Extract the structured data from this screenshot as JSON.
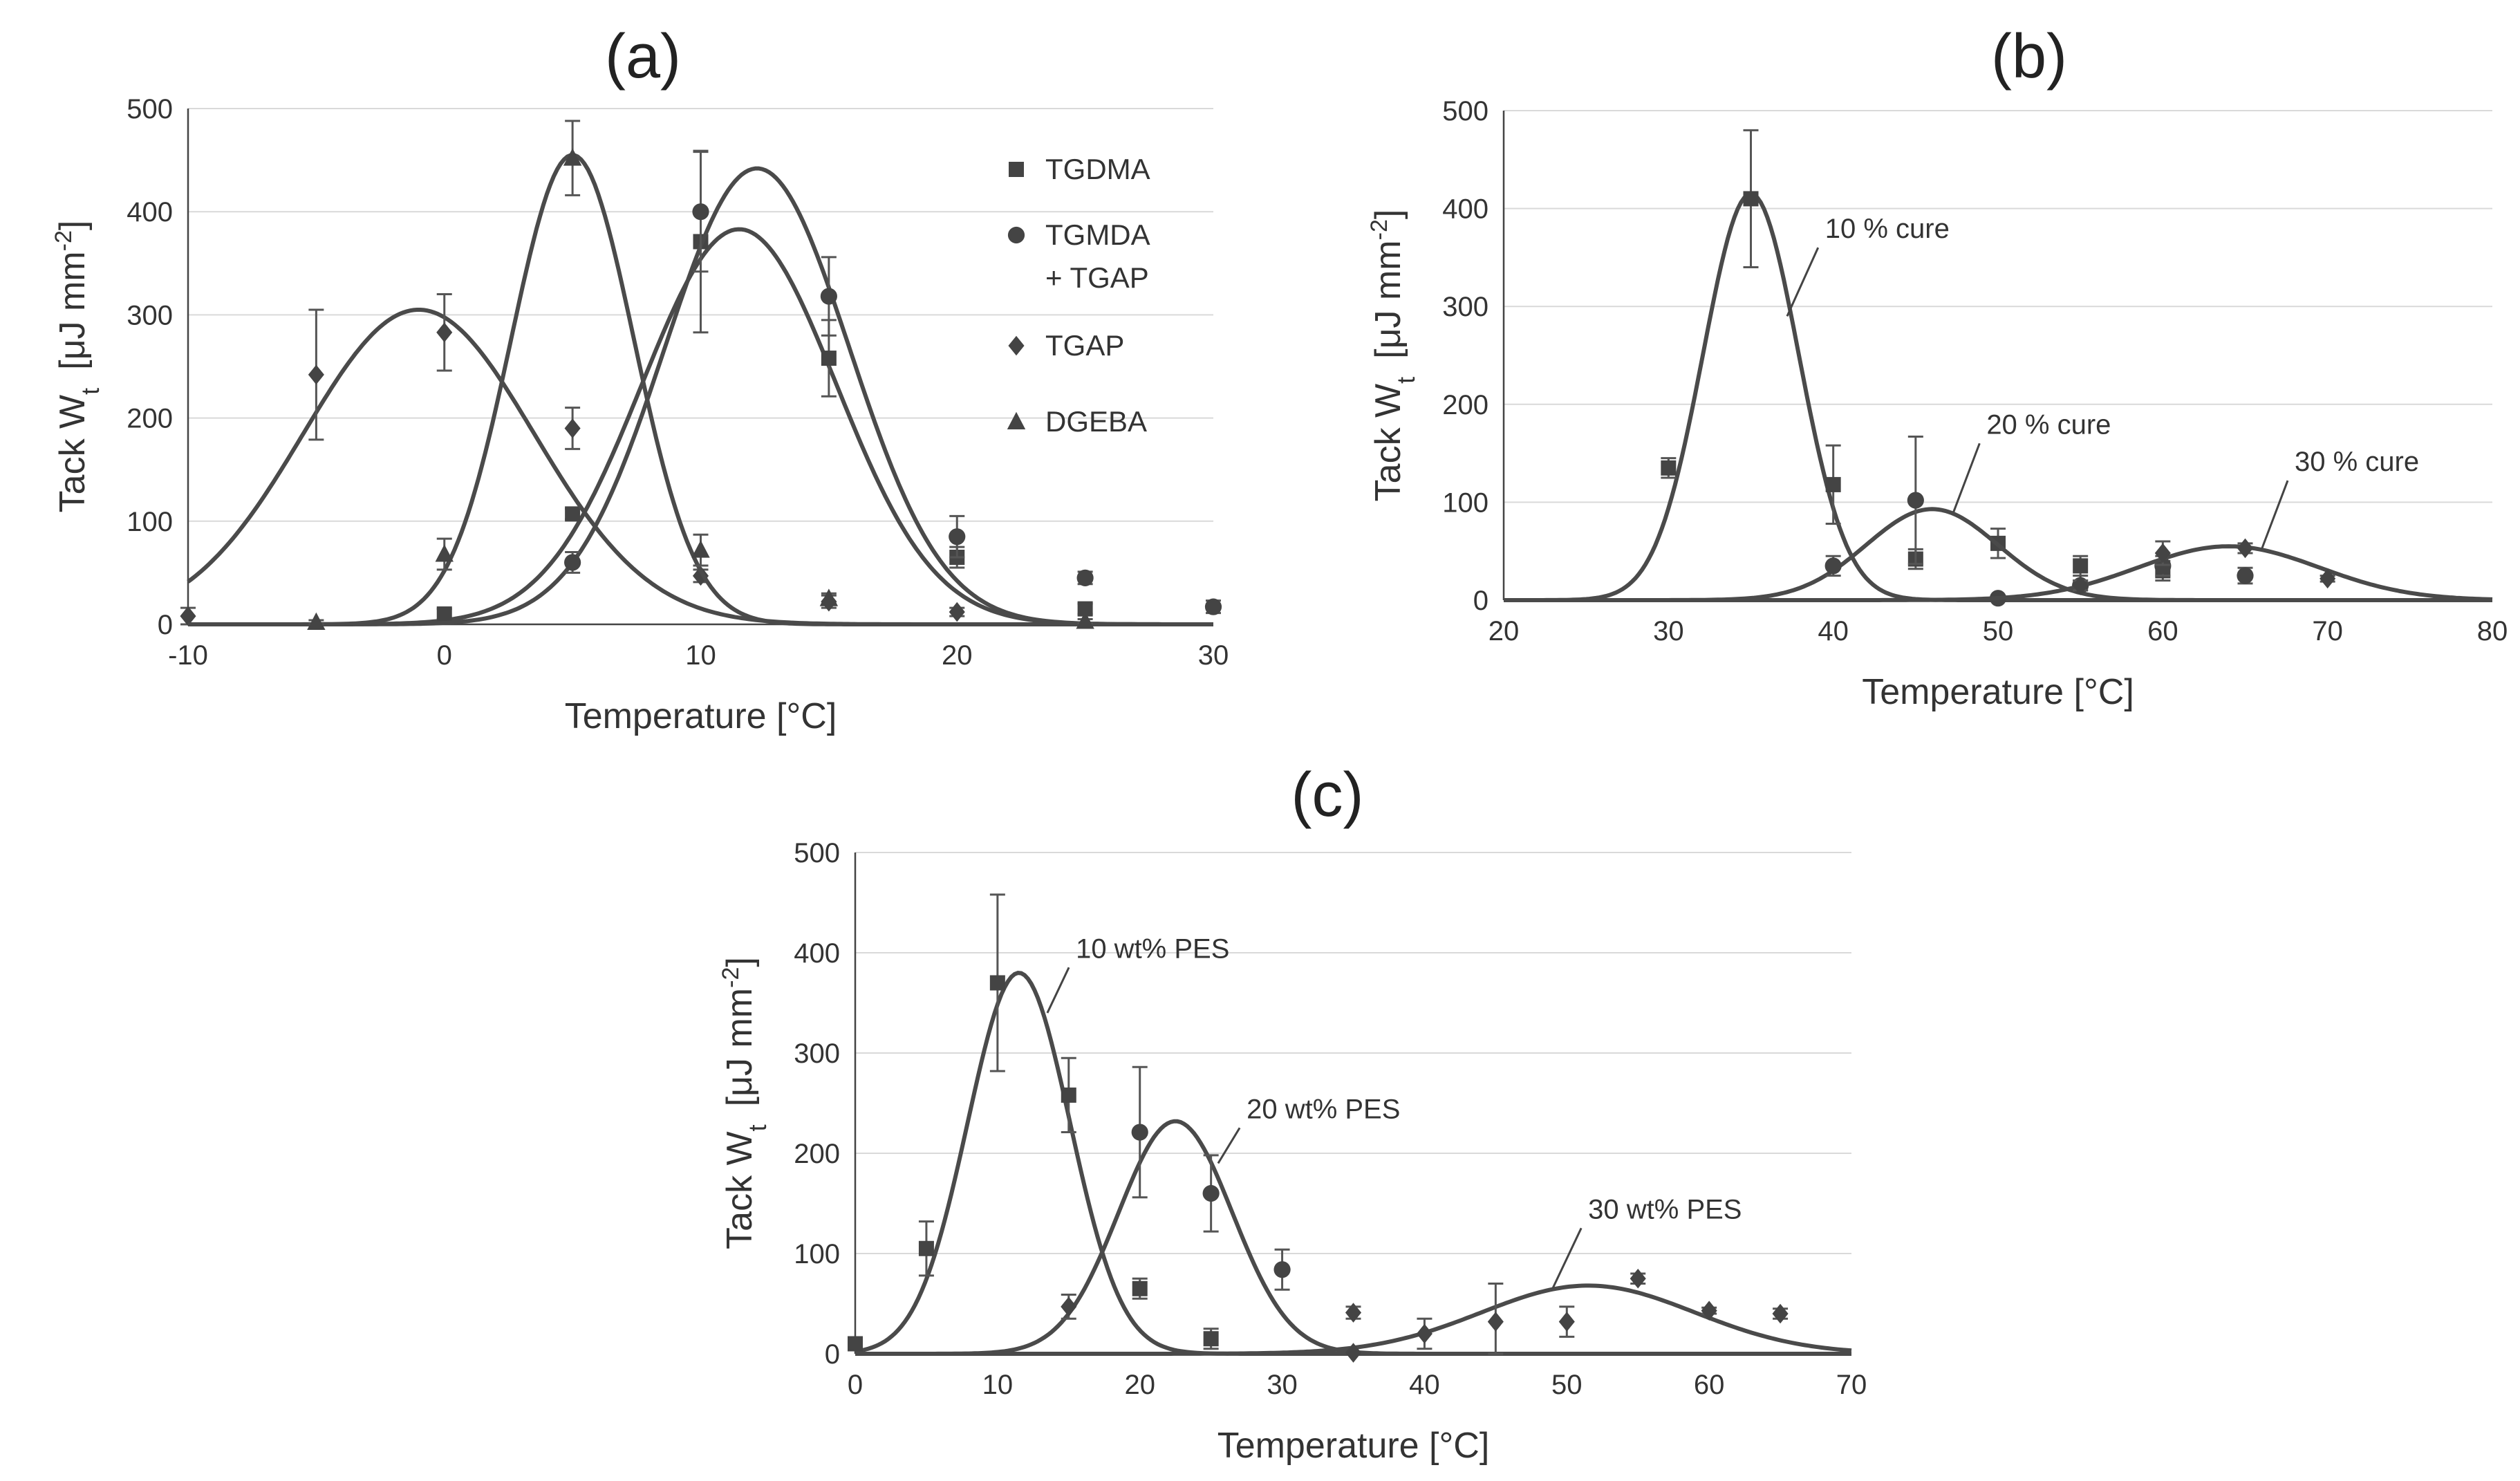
{
  "chart_data": [
    {
      "type": "scatter",
      "title": "(a)",
      "xlabel": "Temperature   [°C]",
      "ylabel": "Tack W",
      "ylabel_sub": "t",
      "ylabel_unit": "[μJ mm",
      "ylabel_sup": "-2",
      "ylabel_close": "]",
      "xlim": [
        -10,
        30
      ],
      "ylim": [
        0,
        500
      ],
      "xticks": [
        -10,
        0,
        10,
        20,
        30
      ],
      "yticks": [
        0,
        100,
        200,
        300,
        400,
        500
      ],
      "grid": "horizontal",
      "legend_position": "top-right",
      "series": [
        {
          "name": "TGDMA",
          "marker": "square",
          "points": [
            {
              "x": 0,
              "y": 10,
              "err": 5
            },
            {
              "x": 5,
              "y": 107,
              "err": 5
            },
            {
              "x": 10,
              "y": 371,
              "err": 88
            },
            {
              "x": 15,
              "y": 258,
              "err": 37
            },
            {
              "x": 20,
              "y": 65,
              "err": 10
            },
            {
              "x": 25,
              "y": 15,
              "err": 5
            }
          ],
          "fit": {
            "A": 383,
            "mu": 11.5,
            "sigma": 3.8
          }
        },
        {
          "name": "TGMDA\n+ TGAP",
          "marker": "circle",
          "points": [
            {
              "x": 5,
              "y": 60,
              "err": 10
            },
            {
              "x": 10,
              "y": 400,
              "err": 58
            },
            {
              "x": 15,
              "y": 318,
              "err": 38
            },
            {
              "x": 20,
              "y": 85,
              "err": 20
            },
            {
              "x": 25,
              "y": 45,
              "err": 6
            },
            {
              "x": 30,
              "y": 17,
              "err": 6
            }
          ],
          "fit": {
            "A": 442,
            "mu": 12.2,
            "sigma": 3.6
          }
        },
        {
          "name": "TGAP",
          "marker": "diamond",
          "points": [
            {
              "x": -10,
              "y": 8,
              "err": 8
            },
            {
              "x": -5,
              "y": 242,
              "err": 63
            },
            {
              "x": 0,
              "y": 283,
              "err": 37
            },
            {
              "x": 5,
              "y": 190,
              "err": 20
            },
            {
              "x": 10,
              "y": 47,
              "err": 6
            },
            {
              "x": 15,
              "y": 22,
              "err": 6
            },
            {
              "x": 20,
              "y": 12,
              "err": 4
            }
          ],
          "fit": {
            "A": 305,
            "mu": -1.0,
            "sigma": 4.5
          }
        },
        {
          "name": "DGEBA",
          "marker": "triangle",
          "points": [
            {
              "x": -5,
              "y": 2,
              "err": 2
            },
            {
              "x": 0,
              "y": 68,
              "err": 15
            },
            {
              "x": 5,
              "y": 452,
              "err": 36
            },
            {
              "x": 10,
              "y": 72,
              "err": 15
            },
            {
              "x": 15,
              "y": 25,
              "err": 5
            },
            {
              "x": 25,
              "y": 3,
              "err": 2
            }
          ],
          "fit": {
            "A": 455,
            "mu": 5.0,
            "sigma": 2.4
          }
        }
      ]
    },
    {
      "type": "scatter",
      "title": "(b)",
      "xlabel": "Temperature   [°C]",
      "ylabel": "Tack W",
      "ylabel_sub": "t",
      "ylabel_unit": "[μJ mm",
      "ylabel_sup": "-2",
      "ylabel_close": "]",
      "xlim": [
        20,
        80
      ],
      "ylim": [
        0,
        500
      ],
      "xticks": [
        20,
        30,
        40,
        50,
        60,
        70,
        80
      ],
      "yticks": [
        0,
        100,
        200,
        300,
        400,
        500
      ],
      "grid": "horizontal",
      "series": [
        {
          "name": "10 % cure",
          "marker": "square",
          "points": [
            {
              "x": 30,
              "y": 135,
              "err": 10
            },
            {
              "x": 35,
              "y": 410,
              "err": 70
            },
            {
              "x": 40,
              "y": 118,
              "err": 40
            },
            {
              "x": 45,
              "y": 42,
              "err": 10
            },
            {
              "x": 50,
              "y": 58,
              "err": 15
            },
            {
              "x": 55,
              "y": 35,
              "err": 10
            },
            {
              "x": 60,
              "y": 30,
              "err": 10
            }
          ],
          "fit": {
            "A": 415,
            "mu": 35.0,
            "sigma": 2.9
          },
          "annotation": {
            "tx": 39.5,
            "ty": 370,
            "px": 37.2,
            "py": 290
          }
        },
        {
          "name": "20 % cure",
          "marker": "circle",
          "points": [
            {
              "x": 40,
              "y": 35,
              "err": 10
            },
            {
              "x": 45,
              "y": 102,
              "err": 65
            },
            {
              "x": 50,
              "y": 2,
              "err": 2
            },
            {
              "x": 55,
              "y": 15,
              "err": 5
            },
            {
              "x": 60,
              "y": 35,
              "err": 10
            },
            {
              "x": 65,
              "y": 25,
              "err": 8
            }
          ],
          "fit": {
            "A": 93,
            "mu": 46.0,
            "sigma": 4.0
          },
          "annotation": {
            "tx": 49.3,
            "ty": 170,
            "px": 47.3,
            "py": 90
          }
        },
        {
          "name": "30 % cure",
          "marker": "diamond",
          "points": [
            {
              "x": 55,
              "y": 15,
              "err": 5
            },
            {
              "x": 60,
              "y": 48,
              "err": 12
            },
            {
              "x": 65,
              "y": 53,
              "err": 5
            },
            {
              "x": 70,
              "y": 22,
              "err": 3
            }
          ],
          "fit": {
            "A": 55,
            "mu": 64.0,
            "sigma": 5.5
          },
          "annotation": {
            "tx": 68.0,
            "ty": 132,
            "px": 66.0,
            "py": 52
          }
        }
      ]
    },
    {
      "type": "scatter",
      "title": "(c)",
      "xlabel": "Temperature   [°C]",
      "ylabel": "Tack W",
      "ylabel_sub": "t",
      "ylabel_unit": "[μJ mm",
      "ylabel_sup": "-2",
      "ylabel_close": "]",
      "xlim": [
        0,
        70
      ],
      "ylim": [
        0,
        500
      ],
      "xticks": [
        0,
        10,
        20,
        30,
        40,
        50,
        60,
        70
      ],
      "yticks": [
        0,
        100,
        200,
        300,
        400,
        500
      ],
      "grid": "horizontal",
      "series": [
        {
          "name": "10 wt% PES",
          "marker": "square",
          "points": [
            {
              "x": 0,
              "y": 10,
              "err": 3
            },
            {
              "x": 5,
              "y": 105,
              "err": 27
            },
            {
              "x": 10,
              "y": 370,
              "err": 88
            },
            {
              "x": 15,
              "y": 258,
              "err": 37
            },
            {
              "x": 20,
              "y": 65,
              "err": 10
            },
            {
              "x": 25,
              "y": 15,
              "err": 10
            }
          ],
          "fit": {
            "A": 380,
            "mu": 11.5,
            "sigma": 3.6
          },
          "annotation": {
            "tx": 15.5,
            "ty": 395,
            "px": 13.5,
            "py": 340
          }
        },
        {
          "name": "20 wt% PES",
          "marker": "circle",
          "points": [
            {
              "x": 20,
              "y": 221,
              "err": 65
            },
            {
              "x": 25,
              "y": 160,
              "err": 38
            },
            {
              "x": 30,
              "y": 84,
              "err": 20
            }
          ],
          "fit": {
            "A": 232,
            "mu": 22.5,
            "sigma": 4.0
          },
          "annotation": {
            "tx": 27.5,
            "ty": 235,
            "px": 25.5,
            "py": 190
          }
        },
        {
          "name": "30 wt% PES",
          "marker": "diamond",
          "points": [
            {
              "x": 15,
              "y": 47,
              "err": 12
            },
            {
              "x": 35,
              "y": 41,
              "err": 6
            },
            {
              "x": 35,
              "y": 1,
              "err": 0
            },
            {
              "x": 40,
              "y": 20,
              "err": 15
            },
            {
              "x": 45,
              "y": 32,
              "err": 38
            },
            {
              "x": 50,
              "y": 32,
              "err": 15
            },
            {
              "x": 55,
              "y": 75,
              "err": 5
            },
            {
              "x": 60,
              "y": 43,
              "err": 3
            },
            {
              "x": 65,
              "y": 40,
              "err": 5
            }
          ],
          "fit": {
            "A": 68,
            "mu": 51.5,
            "sigma": 7.5
          },
          "annotation": {
            "tx": 51.5,
            "ty": 135,
            "px": 49.0,
            "py": 65
          }
        }
      ]
    }
  ]
}
